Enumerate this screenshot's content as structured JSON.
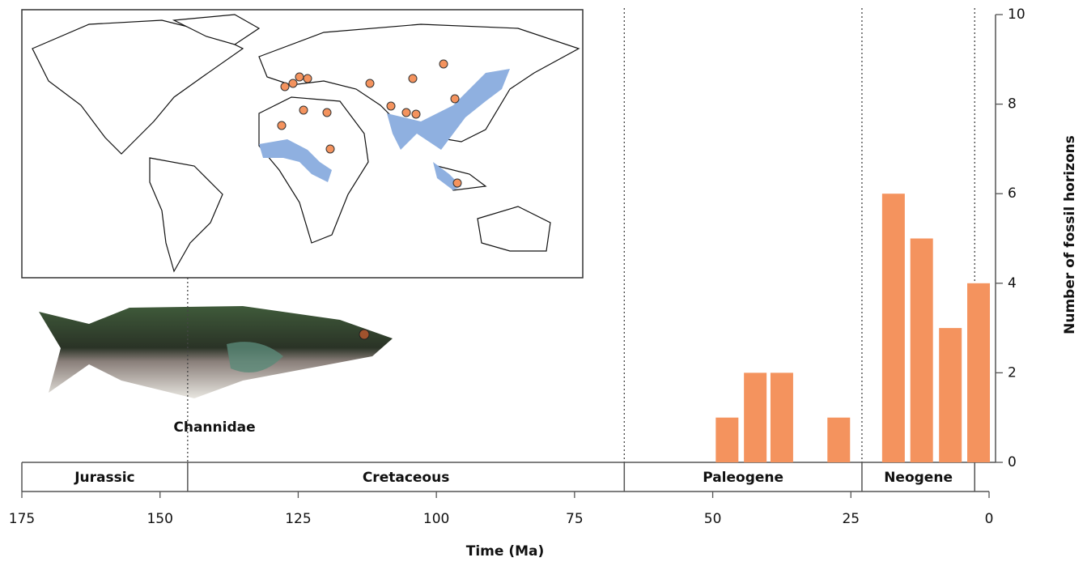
{
  "chart_data": {
    "type": "bar",
    "x": [
      47.4,
      42.3,
      37.5,
      27.2,
      17.3,
      12.2,
      7.0,
      1.9
    ],
    "values": [
      1,
      2,
      2,
      1,
      6,
      5,
      3,
      4
    ],
    "color": "#f4935e",
    "xlabel": "Time (Ma)",
    "ylabel": "Number of fossil horizons",
    "xlim": [
      175,
      0
    ],
    "ylim": [
      0,
      10
    ],
    "xticks": [
      175,
      150,
      125,
      100,
      75,
      50,
      25,
      0
    ],
    "yticks": [
      0,
      2,
      4,
      6,
      8,
      10
    ],
    "periods": [
      {
        "name": "Jurassic",
        "start": 175,
        "end": 145
      },
      {
        "name": "Cretaceous",
        "start": 145,
        "end": 66
      },
      {
        "name": "Paleogene",
        "start": 66,
        "end": 23
      },
      {
        "name": "Neogene",
        "start": 23,
        "end": 2.6
      }
    ],
    "annotation": "Channidae"
  }
}
